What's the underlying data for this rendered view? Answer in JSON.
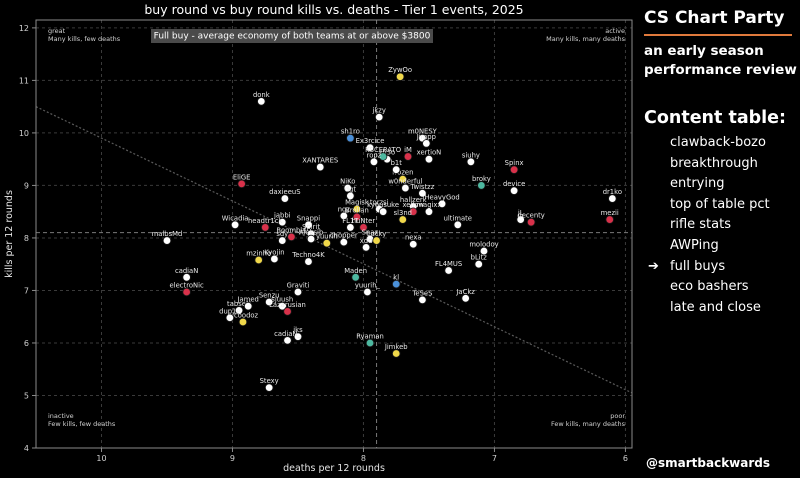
{
  "chart_data": {
    "type": "scatter",
    "title": "buy round vs buy round kills vs. deaths - Tier 1 events, 2025",
    "xlabel": "deaths per 12 rounds",
    "ylabel": "kills per 12 rounds",
    "x_axis_inverted": true,
    "xlim": [
      10.5,
      5.95
    ],
    "ylim": [
      4,
      12.15
    ],
    "x_ticks": [
      10,
      9,
      8,
      7,
      6
    ],
    "y_ticks": [
      4,
      5,
      6,
      7,
      8,
      9,
      10,
      11,
      12
    ],
    "grid": true,
    "reference_lines": {
      "x": 7.9,
      "y": 8.1,
      "trend": [
        [
          10.5,
          10.5
        ],
        [
          5.95,
          5.05
        ]
      ]
    },
    "banner": "Full buy - average economy of both teams at or above $3800",
    "quadrant_labels": [
      {
        "title": "great",
        "text": "Many kills, few deaths",
        "corner": "top-left"
      },
      {
        "title": "active",
        "text": "Many kills, many deaths",
        "corner": "top-right"
      },
      {
        "title": "inactive",
        "text": "Few kills, few deaths",
        "corner": "bottom-left"
      },
      {
        "title": "poor",
        "text": "Few kills, many deaths",
        "corner": "bottom-right"
      }
    ],
    "points": [
      {
        "label": "ZywOo",
        "x": 7.72,
        "y": 11.07,
        "color": "#f0d84a"
      },
      {
        "label": "donk",
        "x": 8.78,
        "y": 10.6,
        "color": "#ffffff"
      },
      {
        "label": "jkzy",
        "x": 7.88,
        "y": 10.3,
        "color": "#ffffff"
      },
      {
        "label": "m0NESY",
        "x": 7.55,
        "y": 9.9,
        "color": "#ffffff"
      },
      {
        "label": "Ex3rcice",
        "x": 7.95,
        "y": 9.72,
        "color": "#ffffff"
      },
      {
        "label": "sh1ro",
        "x": 8.1,
        "y": 9.9,
        "color": "#4a90d9"
      },
      {
        "label": "Jimpp",
        "x": 7.52,
        "y": 9.8,
        "color": "#ffffff"
      },
      {
        "label": "sh3o",
        "x": 7.82,
        "y": 9.5,
        "color": "#ffffff"
      },
      {
        "label": "KSCERATO",
        "x": 7.85,
        "y": 9.55,
        "color": "#4db8a0"
      },
      {
        "label": "iM",
        "x": 7.66,
        "y": 9.55,
        "color": "#d8314a"
      },
      {
        "label": "xertioN",
        "x": 7.5,
        "y": 9.5,
        "color": "#ffffff"
      },
      {
        "label": "XANTARES",
        "x": 8.33,
        "y": 9.35,
        "color": "#ffffff"
      },
      {
        "label": "ropz",
        "x": 7.92,
        "y": 9.45,
        "color": "#ffffff"
      },
      {
        "label": "siuhy",
        "x": 7.18,
        "y": 9.45,
        "color": "#ffffff"
      },
      {
        "label": "Spinx",
        "x": 6.85,
        "y": 9.3,
        "color": "#d8314a"
      },
      {
        "label": "frozen",
        "x": 7.7,
        "y": 9.12,
        "color": "#f0d84a"
      },
      {
        "label": "b1t",
        "x": 7.75,
        "y": 9.3,
        "color": "#ffffff"
      },
      {
        "label": "broky",
        "x": 7.1,
        "y": 9.0,
        "color": "#4db8a0"
      },
      {
        "label": "EliGE",
        "x": 8.93,
        "y": 9.03,
        "color": "#d8314a"
      },
      {
        "label": "NiKo",
        "x": 8.12,
        "y": 8.95,
        "color": "#ffffff"
      },
      {
        "label": "w0nderful",
        "x": 7.68,
        "y": 8.95,
        "color": "#ffffff"
      },
      {
        "label": "device",
        "x": 6.85,
        "y": 8.9,
        "color": "#ffffff"
      },
      {
        "label": "Twistzz",
        "x": 7.55,
        "y": 8.85,
        "color": "#ffffff"
      },
      {
        "label": "daxieeuS",
        "x": 8.6,
        "y": 8.75,
        "color": "#ffffff"
      },
      {
        "label": "dgt",
        "x": 8.1,
        "y": 8.8,
        "color": "#ffffff"
      },
      {
        "label": "dr1ko",
        "x": 6.1,
        "y": 8.75,
        "color": "#ffffff"
      },
      {
        "label": "HeavyGod",
        "x": 7.4,
        "y": 8.65,
        "color": "#ffffff"
      },
      {
        "label": "hallzerk",
        "x": 7.62,
        "y": 8.6,
        "color": "#ffffff"
      },
      {
        "label": "torzsi",
        "x": 7.88,
        "y": 8.55,
        "color": "#ffffff"
      },
      {
        "label": "Magisk",
        "x": 8.05,
        "y": 8.55,
        "color": "#f0d84a"
      },
      {
        "label": "magixx",
        "x": 7.5,
        "y": 8.5,
        "color": "#ffffff"
      },
      {
        "label": "xellow",
        "x": 7.62,
        "y": 8.5,
        "color": "#d8314a"
      },
      {
        "label": "kyousuke",
        "x": 7.85,
        "y": 8.5,
        "color": "#ffffff"
      },
      {
        "label": "Brollan",
        "x": 8.05,
        "y": 8.4,
        "color": "#d8314a"
      },
      {
        "label": "sl3nd",
        "x": 7.7,
        "y": 8.35,
        "color": "#f0d84a"
      },
      {
        "label": "nqz",
        "x": 8.15,
        "y": 8.42,
        "color": "#ffffff"
      },
      {
        "label": "Wicadia",
        "x": 8.98,
        "y": 8.25,
        "color": "#ffffff"
      },
      {
        "label": "jabbi",
        "x": 8.62,
        "y": 8.3,
        "color": "#ffffff"
      },
      {
        "label": "Snappi",
        "x": 8.42,
        "y": 8.25,
        "color": "#ffffff"
      },
      {
        "label": "huNter",
        "x": 8.0,
        "y": 8.2,
        "color": "#d8314a"
      },
      {
        "label": "ultimate",
        "x": 7.28,
        "y": 8.25,
        "color": "#ffffff"
      },
      {
        "label": "jL",
        "x": 6.8,
        "y": 8.35,
        "color": "#ffffff"
      },
      {
        "label": "decenty",
        "x": 6.72,
        "y": 8.3,
        "color": "#d8314a"
      },
      {
        "label": "mezii",
        "x": 6.12,
        "y": 8.35,
        "color": "#d8314a"
      },
      {
        "label": "headtr1ck",
        "x": 8.75,
        "y": 8.2,
        "color": "#d8314a"
      },
      {
        "label": "FL1T",
        "x": 8.1,
        "y": 8.2,
        "color": "#ffffff"
      },
      {
        "label": "Spirit",
        "x": 8.4,
        "y": 8.08,
        "color": "#ffffff"
      },
      {
        "label": "malbsMd",
        "x": 9.5,
        "y": 7.95,
        "color": "#ffffff"
      },
      {
        "label": "Boombl4",
        "x": 8.55,
        "y": 8.02,
        "color": "#d8314a"
      },
      {
        "label": "sdy",
        "x": 8.62,
        "y": 7.95,
        "color": "#ffffff"
      },
      {
        "label": "Aleksib",
        "x": 8.4,
        "y": 7.98,
        "color": "#ffffff"
      },
      {
        "label": "yuurih",
        "x": 8.28,
        "y": 7.9,
        "color": "#f0d84a"
      },
      {
        "label": "chopper",
        "x": 8.15,
        "y": 7.92,
        "color": "#ffffff"
      },
      {
        "label": "Snax",
        "x": 7.95,
        "y": 7.98,
        "color": "#ffffff"
      },
      {
        "label": "Lucky",
        "x": 7.9,
        "y": 7.95,
        "color": "#f0d84a"
      },
      {
        "label": "molodoy",
        "x": 7.08,
        "y": 7.75,
        "color": "#ffffff"
      },
      {
        "label": "nexa",
        "x": 7.62,
        "y": 7.88,
        "color": "#ffffff"
      },
      {
        "label": "xdd",
        "x": 7.98,
        "y": 7.82,
        "color": "#ffffff"
      },
      {
        "label": "Kyojin",
        "x": 8.68,
        "y": 7.6,
        "color": "#ffffff"
      },
      {
        "label": "Techno4K",
        "x": 8.42,
        "y": 7.55,
        "color": "#ffffff"
      },
      {
        "label": "mzinho",
        "x": 8.8,
        "y": 7.58,
        "color": "#f0d84a"
      },
      {
        "label": "bLitz",
        "x": 7.12,
        "y": 7.5,
        "color": "#ffffff"
      },
      {
        "label": "FL4MUS",
        "x": 7.35,
        "y": 7.38,
        "color": "#ffffff"
      },
      {
        "label": "Maden",
        "x": 8.06,
        "y": 7.25,
        "color": "#4db8a0"
      },
      {
        "label": "kl",
        "x": 7.75,
        "y": 7.12,
        "color": "#4a90d9"
      },
      {
        "label": "yuurih_",
        "x": 7.97,
        "y": 6.97,
        "color": "#ffffff"
      },
      {
        "label": "Graviti",
        "x": 8.5,
        "y": 6.97,
        "color": "#ffffff"
      },
      {
        "label": "cadiaN",
        "x": 9.35,
        "y": 7.25,
        "color": "#ffffff"
      },
      {
        "label": "electroNic",
        "x": 9.35,
        "y": 6.97,
        "color": "#d8314a"
      },
      {
        "label": "TeSeS",
        "x": 7.55,
        "y": 6.82,
        "color": "#ffffff"
      },
      {
        "label": "JaCkz",
        "x": 7.22,
        "y": 6.85,
        "color": "#ffffff"
      },
      {
        "label": "Senzu",
        "x": 8.72,
        "y": 6.78,
        "color": "#ffffff"
      },
      {
        "label": "sjuush",
        "x": 8.62,
        "y": 6.7,
        "color": "#ffffff"
      },
      {
        "label": "Lazarusian",
        "x": 8.58,
        "y": 6.6,
        "color": "#d8314a"
      },
      {
        "label": "tabseN",
        "x": 8.95,
        "y": 6.62,
        "color": "#ffffff"
      },
      {
        "label": "Jamed",
        "x": 8.88,
        "y": 6.7,
        "color": "#ffffff"
      },
      {
        "label": "nicoodoz",
        "x": 8.92,
        "y": 6.4,
        "color": "#f0d84a"
      },
      {
        "label": "dup1e",
        "x": 9.02,
        "y": 6.48,
        "color": "#ffffff"
      },
      {
        "label": "jks",
        "x": 8.5,
        "y": 6.12,
        "color": "#ffffff"
      },
      {
        "label": "cadiaN_",
        "x": 8.58,
        "y": 6.05,
        "color": "#ffffff"
      },
      {
        "label": "Ryaman",
        "x": 7.95,
        "y": 6.0,
        "color": "#4db8a0"
      },
      {
        "label": "Jimkeb",
        "x": 7.75,
        "y": 5.8,
        "color": "#f0d84a"
      },
      {
        "label": "Stexy",
        "x": 8.72,
        "y": 5.15,
        "color": "#ffffff"
      }
    ]
  },
  "sidebar": {
    "brand": "CS Chart Party",
    "subtitle": "an early season performance review",
    "toc_title": "Content table:",
    "items": [
      {
        "label": "clawback-bozo",
        "marker": ""
      },
      {
        "label": "breakthrough",
        "marker": ""
      },
      {
        "label": "entrying",
        "marker": ""
      },
      {
        "label": "top of table pct",
        "marker": ""
      },
      {
        "label": "rifle stats",
        "marker": ""
      },
      {
        "label": "AWPing",
        "marker": ""
      },
      {
        "label": "full buys",
        "marker": "➔"
      },
      {
        "label": "eco bashers",
        "marker": ""
      },
      {
        "label": "late and close",
        "marker": ""
      }
    ],
    "handle": "@smartbackwards"
  },
  "colors": {
    "background": "#000000",
    "plot_frame": "#8a8a8a",
    "grid": "#3a3a3a",
    "reference": "#7a7a7a",
    "trend": "#5a5a5a",
    "banner_bg": "#4a4a4a",
    "accent_rule": "#e07a3c"
  }
}
